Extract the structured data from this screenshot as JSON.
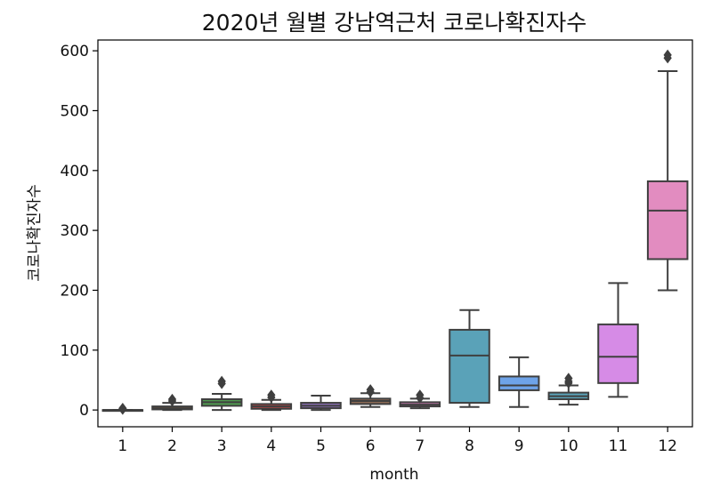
{
  "chart_data": {
    "type": "box",
    "title": "2020년 월별 강남역근처 코로나확진자수",
    "xlabel": "month",
    "ylabel": "코로나확진자수",
    "ylim": [
      -28,
      618
    ],
    "yticks": [
      0,
      100,
      200,
      300,
      400,
      500,
      600
    ],
    "grid": false,
    "categories": [
      "1",
      "2",
      "3",
      "4",
      "5",
      "6",
      "7",
      "8",
      "9",
      "10",
      "11",
      "12"
    ],
    "boxes": [
      {
        "category": "1",
        "whisker_low": 0,
        "q1": 0,
        "median": 0,
        "q3": 0,
        "whisker_high": 0,
        "outliers": [
          3,
          2,
          1
        ],
        "color": "#3a6fb0"
      },
      {
        "category": "2",
        "whisker_low": 0,
        "q1": 1,
        "median": 3,
        "q3": 6,
        "whisker_high": 12,
        "outliers": [
          18,
          15
        ],
        "color": "#c97c32"
      },
      {
        "category": "3",
        "whisker_low": 0,
        "q1": 7,
        "median": 13,
        "q3": 18,
        "whisker_high": 27,
        "outliers": [
          48,
          44
        ],
        "color": "#4f9a4f"
      },
      {
        "category": "4",
        "whisker_low": 0,
        "q1": 2,
        "median": 6,
        "q3": 10,
        "whisker_high": 17,
        "outliers": [
          25,
          21
        ],
        "color": "#b54848"
      },
      {
        "category": "5",
        "whisker_low": 0,
        "q1": 3,
        "median": 7,
        "q3": 12,
        "whisker_high": 24,
        "outliers": [],
        "color": "#8a6db5"
      },
      {
        "category": "6",
        "whisker_low": 5,
        "q1": 10,
        "median": 15,
        "q3": 19,
        "whisker_high": 28,
        "outliers": [
          34,
          30
        ],
        "color": "#8c6a55"
      },
      {
        "category": "7",
        "whisker_low": 3,
        "q1": 6,
        "median": 9,
        "q3": 13,
        "whisker_high": 19,
        "outliers": [
          25,
          20
        ],
        "color": "#d17cb8"
      },
      {
        "category": "8",
        "whisker_low": 5,
        "q1": 12,
        "median": 91,
        "q3": 134,
        "whisker_high": 167,
        "outliers": [],
        "color": "#5aa2b8"
      },
      {
        "category": "9",
        "whisker_low": 5,
        "q1": 33,
        "median": 41,
        "q3": 56,
        "whisker_high": 88,
        "outliers": [],
        "color": "#6ea3e8"
      },
      {
        "category": "10",
        "whisker_low": 9,
        "q1": 18,
        "median": 23,
        "q3": 29,
        "whisker_high": 41,
        "outliers": [
          53,
          48,
          45
        ],
        "color": "#5aa2b8"
      },
      {
        "category": "11",
        "whisker_low": 22,
        "q1": 45,
        "median": 89,
        "q3": 143,
        "whisker_high": 212,
        "outliers": [],
        "color": "#d68be6"
      },
      {
        "category": "12",
        "whisker_low": 200,
        "q1": 252,
        "median": 333,
        "q3": 382,
        "whisker_high": 566,
        "outliers": [
          593,
          588
        ],
        "color": "#e28cc0"
      }
    ]
  }
}
